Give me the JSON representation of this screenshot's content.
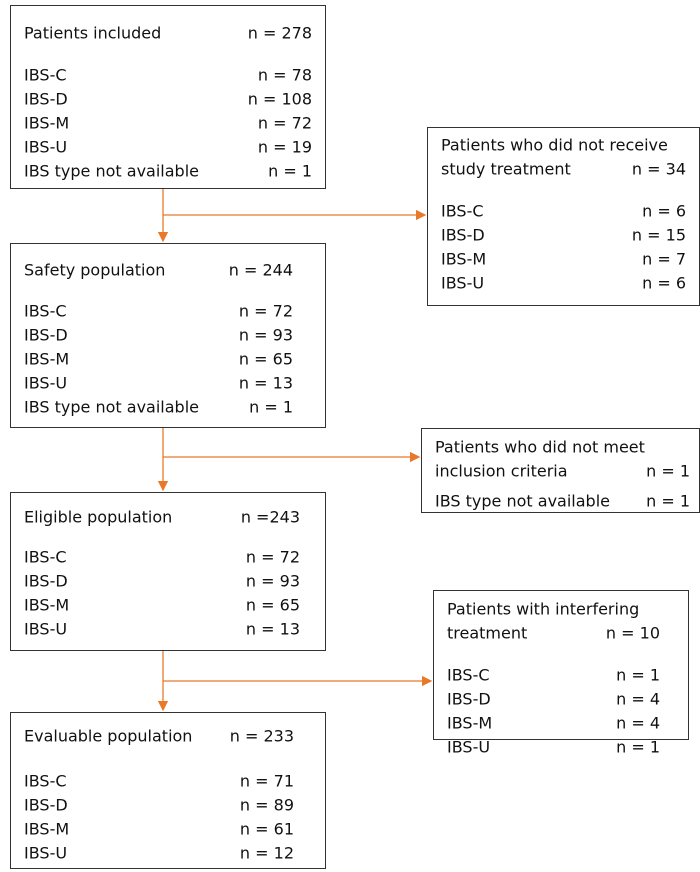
{
  "boxes": [
    {
      "title": [
        "Patients included"
      ],
      "n": "n = 278",
      "rows": [
        {
          "label": "IBS-C",
          "n": "n = 78"
        },
        {
          "label": "IBS-D",
          "n": "n = 108"
        },
        {
          "label": "IBS-M",
          "n": "n = 72"
        },
        {
          "label": "IBS-U",
          "n": "n = 19"
        },
        {
          "label": "IBS type not available",
          "n": "n = 1"
        }
      ]
    },
    {
      "title": [
        "Patients who did not receive",
        "study treatment"
      ],
      "n": "n = 34",
      "rows": [
        {
          "label": "IBS-C",
          "n": "n = 6"
        },
        {
          "label": "IBS-D",
          "n": "n = 15"
        },
        {
          "label": "IBS-M",
          "n": "n = 7"
        },
        {
          "label": "IBS-U",
          "n": "n = 6"
        }
      ]
    },
    {
      "title": [
        "Safety population"
      ],
      "n": "n = 244",
      "rows": [
        {
          "label": "IBS-C",
          "n": "n = 72"
        },
        {
          "label": "IBS-D",
          "n": "n = 93"
        },
        {
          "label": "IBS-M",
          "n": "n = 65"
        },
        {
          "label": "IBS-U",
          "n": "n = 13"
        },
        {
          "label": "IBS type not available",
          "n": "n = 1"
        }
      ]
    },
    {
      "title": [
        "Patients who did not meet",
        "inclusion criteria"
      ],
      "n": "n = 1",
      "rows": [
        {
          "label": "IBS type not available",
          "n": "n = 1"
        }
      ]
    },
    {
      "title": [
        "Eligible population"
      ],
      "n": "n =243",
      "rows": [
        {
          "label": "IBS-C",
          "n": "n = 72"
        },
        {
          "label": "IBS-D",
          "n": "n = 93"
        },
        {
          "label": "IBS-M",
          "n": "n = 65"
        },
        {
          "label": "IBS-U",
          "n": "n = 13"
        }
      ]
    },
    {
      "title": [
        "Patients with interfering",
        "treatment"
      ],
      "n": "n = 10",
      "rows": [
        {
          "label": "IBS-C",
          "n": "n = 1"
        },
        {
          "label": "IBS-D",
          "n": "n = 4"
        },
        {
          "label": "IBS-M",
          "n": "n = 4"
        },
        {
          "label": "IBS-U",
          "n": "n = 1"
        }
      ]
    },
    {
      "title": [
        "Evaluable population"
      ],
      "n": "n = 233",
      "rows": [
        {
          "label": "IBS-C",
          "n": "n = 71"
        },
        {
          "label": "IBS-D",
          "n": "n = 89"
        },
        {
          "label": "IBS-M",
          "n": "n = 61"
        },
        {
          "label": "IBS-U",
          "n": "n = 12"
        }
      ]
    }
  ]
}
